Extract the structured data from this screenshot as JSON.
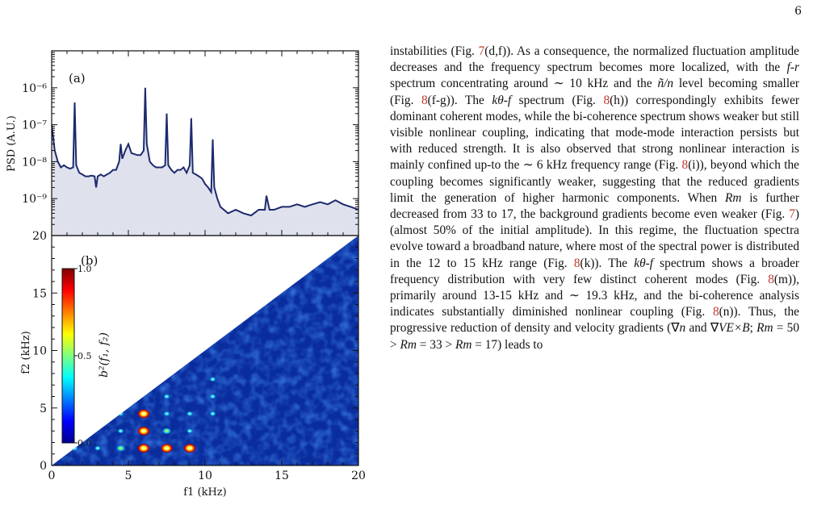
{
  "page": {
    "number": "6"
  },
  "figure": {
    "panel_a_label": "(a)",
    "panel_b_label": "(b)",
    "panel_a_ylabel": "PSD (A.U.)",
    "panel_b_ylabel": "f2 (kHz)",
    "xlabel": "f1 (kHz)",
    "colorbar_label": "b²(f₁, f₂)",
    "colors": {
      "psd_line": "#1c2a6e",
      "psd_fill": "#dfe1ec",
      "bico_background": "#0a2d9e",
      "axes": "#111111"
    }
  },
  "chart_data": [
    {
      "type": "line",
      "panel": "(a)",
      "ylabel": "PSD (A.U.)",
      "yscale": "log",
      "xlim": [
        0,
        20
      ],
      "ylim": [
        1e-10,
        1e-05
      ],
      "yticks": [
        "10⁻⁹",
        "10⁻⁸",
        "10⁻⁷",
        "10⁻⁶"
      ],
      "area_fill": true,
      "series": [
        {
          "x": [
            0,
            0.2,
            0.4,
            0.6,
            0.8,
            1.0,
            1.2,
            1.4,
            1.5,
            1.6,
            1.8,
            2.0,
            2.2,
            2.4,
            2.6,
            2.8,
            2.9,
            3.0,
            3.2,
            3.4,
            3.6,
            3.8,
            4.0,
            4.2,
            4.4,
            4.5,
            4.6,
            4.8,
            5.0,
            5.2,
            5.4,
            5.6,
            5.8,
            6.0,
            6.1,
            6.2,
            6.4,
            6.6,
            6.8,
            7.0,
            7.2,
            7.4,
            7.5,
            7.6,
            7.8,
            8.0,
            8.2,
            8.4,
            8.6,
            8.8,
            9.0,
            9.1,
            9.2,
            9.4,
            9.6,
            9.8,
            10.0,
            10.2,
            10.4,
            10.5,
            10.6,
            10.8,
            11.0,
            11.5,
            12.0,
            12.5,
            13.0,
            13.5,
            13.9,
            14.0,
            14.2,
            14.5,
            15.0,
            15.5,
            16.0,
            16.5,
            17.0,
            17.5,
            18.0,
            18.5,
            19.0,
            19.5,
            20.0
          ],
          "y": [
            1e-07,
            2e-08,
            1e-08,
            7e-09,
            8e-09,
            7e-09,
            6.5e-09,
            7e-09,
            4e-07,
            8e-09,
            5e-09,
            4.5e-09,
            4e-09,
            4e-09,
            4.2e-09,
            4e-09,
            2e-09,
            4e-09,
            4.5e-09,
            4e-09,
            4.5e-09,
            5e-09,
            6e-09,
            6e-09,
            1e-08,
            3e-08,
            1.2e-08,
            2e-08,
            3e-08,
            1.7e-08,
            1.6e-08,
            1.5e-08,
            1.5e-08,
            2e-08,
            1e-06,
            3e-08,
            1e-08,
            8e-09,
            7e-09,
            7e-09,
            7e-09,
            8e-09,
            2e-07,
            8e-09,
            6e-09,
            5e-09,
            6e-09,
            6e-09,
            7e-09,
            5e-09,
            8e-09,
            1.5e-07,
            5e-09,
            4.5e-09,
            4e-09,
            3.5e-09,
            2.5e-09,
            2e-09,
            1.5e-09,
            4e-08,
            2e-09,
            1e-09,
            6e-10,
            4e-10,
            5e-10,
            4e-10,
            3.5e-10,
            5e-10,
            5e-10,
            1.2e-09,
            5e-10,
            5e-10,
            6e-10,
            6e-10,
            7e-10,
            6e-10,
            7e-10,
            8e-10,
            7e-10,
            9e-10,
            7e-10,
            6e-10,
            5e-10
          ]
        }
      ]
    },
    {
      "type": "heatmap",
      "panel": "(b)",
      "xlabel": "f1 (kHz)",
      "ylabel": "f2 (kHz)",
      "xlim": [
        0,
        20
      ],
      "ylim": [
        0,
        20
      ],
      "xticks": [
        0,
        5,
        10,
        15,
        20
      ],
      "yticks": [
        0,
        5,
        10,
        15,
        20
      ],
      "domain": "f2 <= f1",
      "colorbar": {
        "label": "b²(f₁, f₂)",
        "range": [
          0.0,
          1.0
        ],
        "ticks": [
          "0.0",
          "0.5",
          "1.0"
        ],
        "colormap": "jet"
      },
      "peaks": [
        {
          "f1": 6.0,
          "f2": 1.5,
          "value": 1.0
        },
        {
          "f1": 7.5,
          "f2": 1.5,
          "value": 1.0
        },
        {
          "f1": 9.0,
          "f2": 1.5,
          "value": 1.0
        },
        {
          "f1": 6.0,
          "f2": 3.0,
          "value": 0.95
        },
        {
          "f1": 6.0,
          "f2": 4.5,
          "value": 0.95
        },
        {
          "f1": 4.5,
          "f2": 1.5,
          "value": 0.5
        },
        {
          "f1": 4.5,
          "f2": 3.0,
          "value": 0.4
        },
        {
          "f1": 7.5,
          "f2": 3.0,
          "value": 0.5
        },
        {
          "f1": 7.5,
          "f2": 4.5,
          "value": 0.35
        },
        {
          "f1": 9.0,
          "f2": 3.0,
          "value": 0.35
        },
        {
          "f1": 9.0,
          "f2": 4.5,
          "value": 0.3
        },
        {
          "f1": 10.5,
          "f2": 4.5,
          "value": 0.3
        },
        {
          "f1": 10.5,
          "f2": 6.0,
          "value": 0.3
        },
        {
          "f1": 7.5,
          "f2": 6.0,
          "value": 0.3
        },
        {
          "f1": 10.5,
          "f2": 7.5,
          "value": 0.3
        },
        {
          "f1": 3.0,
          "f2": 1.5,
          "value": 0.3
        },
        {
          "f1": 1.5,
          "f2": 1.5,
          "value": 0.3
        },
        {
          "f1": 4.5,
          "f2": 4.5,
          "value": 0.3
        }
      ]
    }
  ],
  "text": {
    "body": [
      {
        "t": "instabilities (Fig. "
      },
      {
        "t": "7",
        "ref": true
      },
      {
        "t": "(d,f)). As a consequence, the normalized fluctuation amplitude decreases and the frequency spectrum becomes more localized, with the "
      },
      {
        "t": "f",
        "math": true
      },
      {
        "t": "-"
      },
      {
        "t": "r",
        "math": true
      },
      {
        "t": " spectrum concentrating around ∼ 10 kHz and the "
      },
      {
        "t": "ñ/n",
        "math": true
      },
      {
        "t": " level becoming smaller (Fig. "
      },
      {
        "t": "8",
        "ref": true
      },
      {
        "t": "(f-g)). The "
      },
      {
        "t": "kθ-f",
        "math": true
      },
      {
        "t": " spectrum (Fig. "
      },
      {
        "t": "8",
        "ref": true
      },
      {
        "t": "(h)) correspondingly exhibits fewer dominant coherent modes, while the bi-coherence spectrum shows weaker but still visible nonlinear coupling, indicating that mode-mode interaction persists but with reduced strength. It is also observed that strong nonlinear interaction is mainly confined up-to the ∼ 6 kHz frequency range (Fig. "
      },
      {
        "t": "8",
        "ref": true
      },
      {
        "t": "(i)), beyond which the coupling becomes significantly weaker, suggesting that the reduced gradients limit the generation of higher harmonic components. When "
      },
      {
        "t": "Rm",
        "math": true
      },
      {
        "t": " is further decreased from 33 to 17, the background gradients become even weaker (Fig. "
      },
      {
        "t": "7",
        "ref": true
      },
      {
        "t": ") (almost 50% of the initial amplitude). In this regime, the fluctuation spectra evolve toward a broadband nature, where most of the spectral power is distributed in the 12 to 15 kHz range (Fig. "
      },
      {
        "t": "8",
        "ref": true
      },
      {
        "t": "(k)). The "
      },
      {
        "t": "kθ-f",
        "math": true
      },
      {
        "t": " spectrum shows a broader frequency distribution with very few distinct coherent modes (Fig. "
      },
      {
        "t": "8",
        "ref": true
      },
      {
        "t": "(m)), primarily around 13-15 kHz and ∼ 19.3 kHz, and the bi-coherence analysis indicates substantially diminished nonlinear coupling (Fig. "
      },
      {
        "t": "8",
        "ref": true
      },
      {
        "t": "(n)). Thus, the progressive reduction of density and velocity gradients (∇"
      },
      {
        "t": "n",
        "math": true
      },
      {
        "t": " and ∇"
      },
      {
        "t": "VE×B",
        "math": true
      },
      {
        "t": "; "
      },
      {
        "t": "Rm",
        "math": true
      },
      {
        "t": " = 50 > "
      },
      {
        "t": "Rm",
        "math": true
      },
      {
        "t": " = 33 > "
      },
      {
        "t": "Rm",
        "math": true
      },
      {
        "t": " = 17) leads to"
      }
    ]
  }
}
